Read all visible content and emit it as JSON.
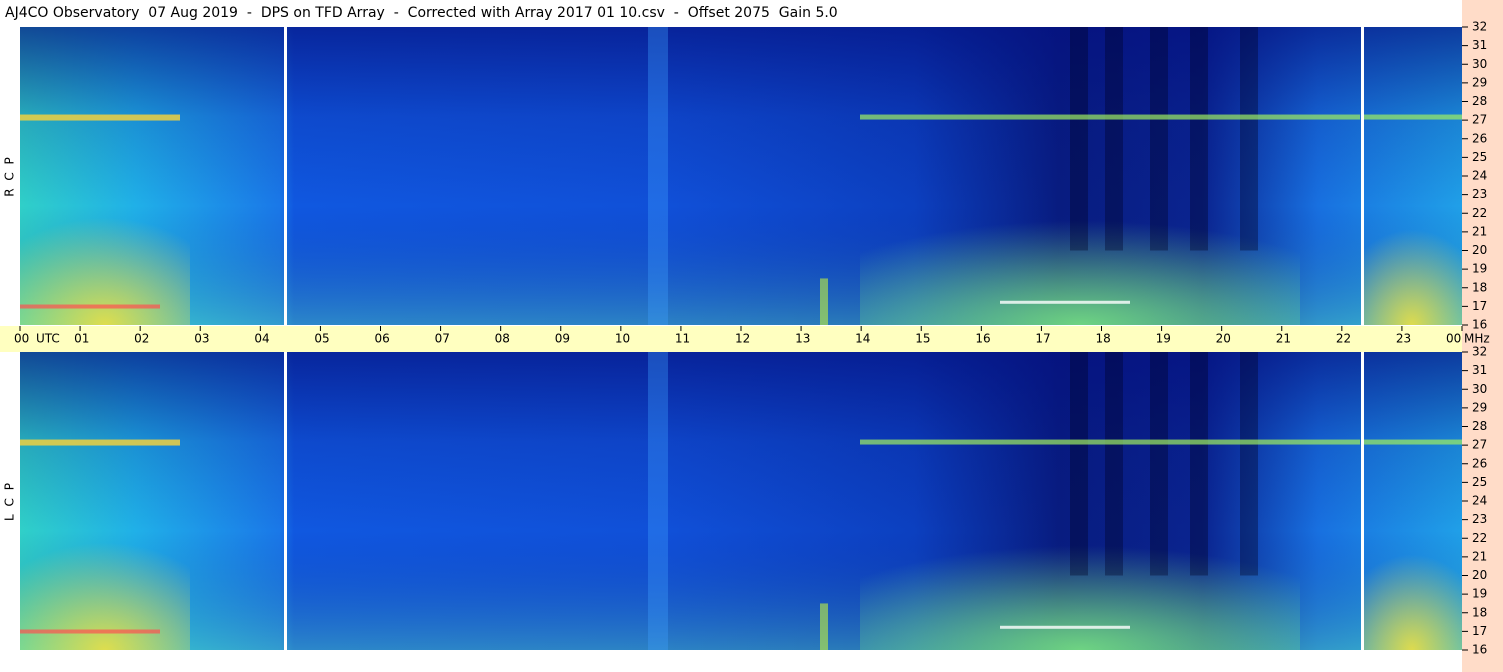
{
  "chart_data": {
    "type": "spectrogram",
    "title": "AJ4CO Observatory  07 Aug 2019  -  DPS on TFD Array  -  Corrected with Array 2017 01 10.csv  -  Offset 2075  Gain 5.0",
    "x_label": "UTC",
    "y_label": "MHz",
    "xlim": [
      0,
      24
    ],
    "xticks": [
      {
        "value": 0,
        "label": "00"
      },
      {
        "value": 1,
        "label": "01"
      },
      {
        "value": 2,
        "label": "02"
      },
      {
        "value": 3,
        "label": "03"
      },
      {
        "value": 4,
        "label": "04"
      },
      {
        "value": 5,
        "label": "05"
      },
      {
        "value": 6,
        "label": "06"
      },
      {
        "value": 7,
        "label": "07"
      },
      {
        "value": 8,
        "label": "08"
      },
      {
        "value": 9,
        "label": "09"
      },
      10,
      11,
      12,
      13,
      14,
      15,
      16,
      17,
      18,
      19,
      20,
      21,
      22,
      23,
      {
        "value": 24,
        "label": "00"
      }
    ],
    "ylim": [
      16,
      32
    ],
    "yticks": [
      16,
      17,
      18,
      19,
      20,
      21,
      22,
      23,
      24,
      25,
      26,
      27,
      28,
      29,
      30,
      31,
      32
    ],
    "panels": [
      {
        "name": "R C P"
      },
      {
        "name": "L C P"
      }
    ]
  }
}
